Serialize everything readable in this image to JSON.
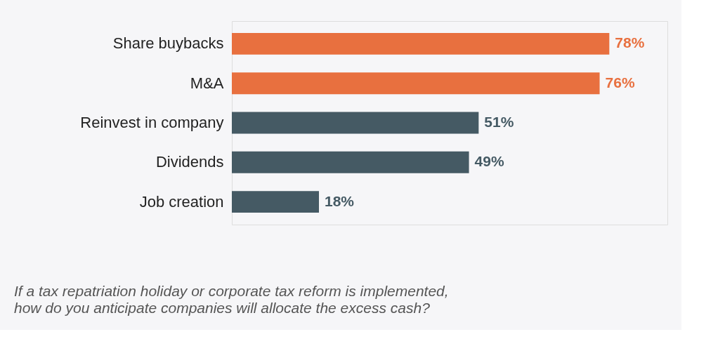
{
  "chart_data": {
    "type": "bar",
    "orientation": "horizontal",
    "categories": [
      "Share buybacks",
      "M&A",
      "Reinvest in company",
      "Dividends",
      "Job creation"
    ],
    "values": [
      78,
      76,
      51,
      49,
      18
    ],
    "value_labels": [
      "78%",
      "76%",
      "51%",
      "49%",
      "18%"
    ],
    "colors": [
      "#e8703f",
      "#e8703f",
      "#455a64",
      "#455a64",
      "#455a64"
    ],
    "xlim": [
      0,
      90
    ],
    "annotations": [
      "If a tax repatriation holiday or corporate tax reform is implemented, how do you anticipate companies will allocate the excess cash?"
    ]
  }
}
